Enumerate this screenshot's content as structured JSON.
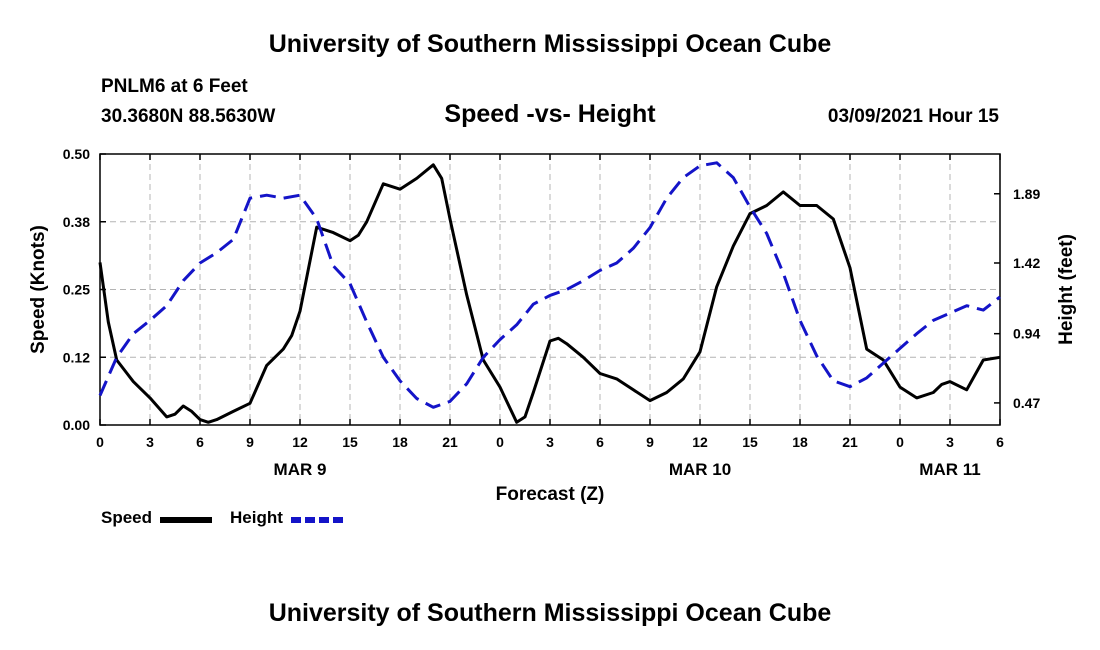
{
  "header": {
    "title": "University of Southern Mississippi Ocean Cube",
    "station": "PNLM6 at 6 Feet",
    "coordinates": "30.3680N 88.5630W",
    "chart_title": "Speed -vs- Height",
    "datetime": "03/09/2021 Hour 15"
  },
  "footer": {
    "title": "University of Southern Mississippi Ocean Cube"
  },
  "legend": {
    "speed_label": "Speed",
    "height_label": "Height"
  },
  "colors": {
    "speed": "#000000",
    "height": "#1414c8",
    "grid": "#b4b4b4"
  },
  "chart_data": {
    "type": "line",
    "title": "Speed -vs- Height",
    "xlabel": "Forecast (Z)",
    "ylabel": "Speed (Knots)",
    "y2label": "Height (feet)",
    "xlim": [
      0,
      54
    ],
    "ylim": [
      0,
      0.5
    ],
    "y2lim": [
      0.32,
      2.16
    ],
    "x_ticks": [
      0,
      3,
      6,
      9,
      12,
      15,
      18,
      21,
      24,
      27,
      30,
      33,
      36,
      39,
      42,
      45,
      48,
      51,
      54
    ],
    "x_tick_labels": [
      "0",
      "3",
      "6",
      "9",
      "12",
      "15",
      "18",
      "21",
      "0",
      "3",
      "6",
      "9",
      "12",
      "15",
      "18",
      "21",
      "0",
      "3",
      "6"
    ],
    "y_ticks": [
      0.0,
      0.125,
      0.25,
      0.375,
      0.5
    ],
    "y_tick_labels": [
      "0.00",
      "0.12",
      "0.25",
      "0.38",
      "0.50"
    ],
    "y2_ticks": [
      0.47,
      0.94,
      1.42,
      1.89
    ],
    "y2_tick_labels": [
      "0.47",
      "0.94",
      "1.42",
      "1.89"
    ],
    "day_labels": [
      {
        "x": 12,
        "label": "MAR 9"
      },
      {
        "x": 36,
        "label": "MAR 10"
      },
      {
        "x": 51,
        "label": "MAR 11"
      }
    ],
    "grid": true,
    "legend_position": "bottom-left",
    "series": [
      {
        "name": "Speed",
        "axis": "left",
        "style": "solid",
        "x": [
          0,
          0.5,
          1,
          2,
          3,
          4,
          4.5,
          5,
          5.5,
          6,
          6.5,
          7,
          8,
          9,
          10,
          11,
          11.5,
          12,
          13,
          14,
          15,
          15.5,
          16,
          17,
          18,
          19,
          20,
          20.5,
          21,
          22,
          23,
          24,
          25,
          25.5,
          26,
          27,
          27.5,
          28,
          29,
          30,
          31,
          32,
          33,
          34,
          35,
          36,
          37,
          38,
          39,
          40,
          41,
          42,
          43,
          44,
          45,
          46,
          47,
          48,
          49,
          50,
          50.5,
          51,
          52,
          53,
          54
        ],
        "values": [
          0.3,
          0.19,
          0.12,
          0.08,
          0.05,
          0.015,
          0.02,
          0.035,
          0.025,
          0.01,
          0.005,
          0.01,
          0.025,
          0.04,
          0.11,
          0.14,
          0.165,
          0.21,
          0.365,
          0.355,
          0.34,
          0.35,
          0.375,
          0.445,
          0.435,
          0.455,
          0.48,
          0.455,
          0.38,
          0.24,
          0.12,
          0.07,
          0.005,
          0.015,
          0.06,
          0.155,
          0.16,
          0.15,
          0.125,
          0.095,
          0.085,
          0.065,
          0.045,
          0.06,
          0.085,
          0.135,
          0.255,
          0.33,
          0.39,
          0.405,
          0.43,
          0.405,
          0.405,
          0.38,
          0.29,
          0.14,
          0.12,
          0.07,
          0.05,
          0.06,
          0.075,
          0.08,
          0.065,
          0.12,
          0.125
        ]
      },
      {
        "name": "Height",
        "axis": "right",
        "style": "dashed",
        "x": [
          0,
          1,
          2,
          3,
          4,
          5,
          6,
          7,
          8,
          9,
          10,
          11,
          12,
          13,
          14,
          15,
          16,
          17,
          18,
          19,
          20,
          21,
          22,
          23,
          24,
          25,
          26,
          27,
          28,
          29,
          30,
          31,
          32,
          33,
          34,
          35,
          36,
          37,
          38,
          39,
          40,
          41,
          42,
          43,
          44,
          45,
          46,
          47,
          48,
          49,
          50,
          51,
          52,
          53,
          54
        ],
        "values": [
          0.52,
          0.78,
          0.94,
          1.03,
          1.13,
          1.3,
          1.42,
          1.49,
          1.58,
          1.86,
          1.88,
          1.86,
          1.88,
          1.72,
          1.4,
          1.28,
          1.02,
          0.78,
          0.62,
          0.5,
          0.44,
          0.48,
          0.6,
          0.78,
          0.9,
          1.0,
          1.14,
          1.2,
          1.24,
          1.3,
          1.37,
          1.42,
          1.52,
          1.66,
          1.86,
          2.0,
          2.08,
          2.1,
          2.0,
          1.8,
          1.62,
          1.35,
          1.03,
          0.79,
          0.62,
          0.58,
          0.64,
          0.74,
          0.84,
          0.94,
          1.03,
          1.08,
          1.13,
          1.1,
          1.19
        ]
      }
    ]
  }
}
